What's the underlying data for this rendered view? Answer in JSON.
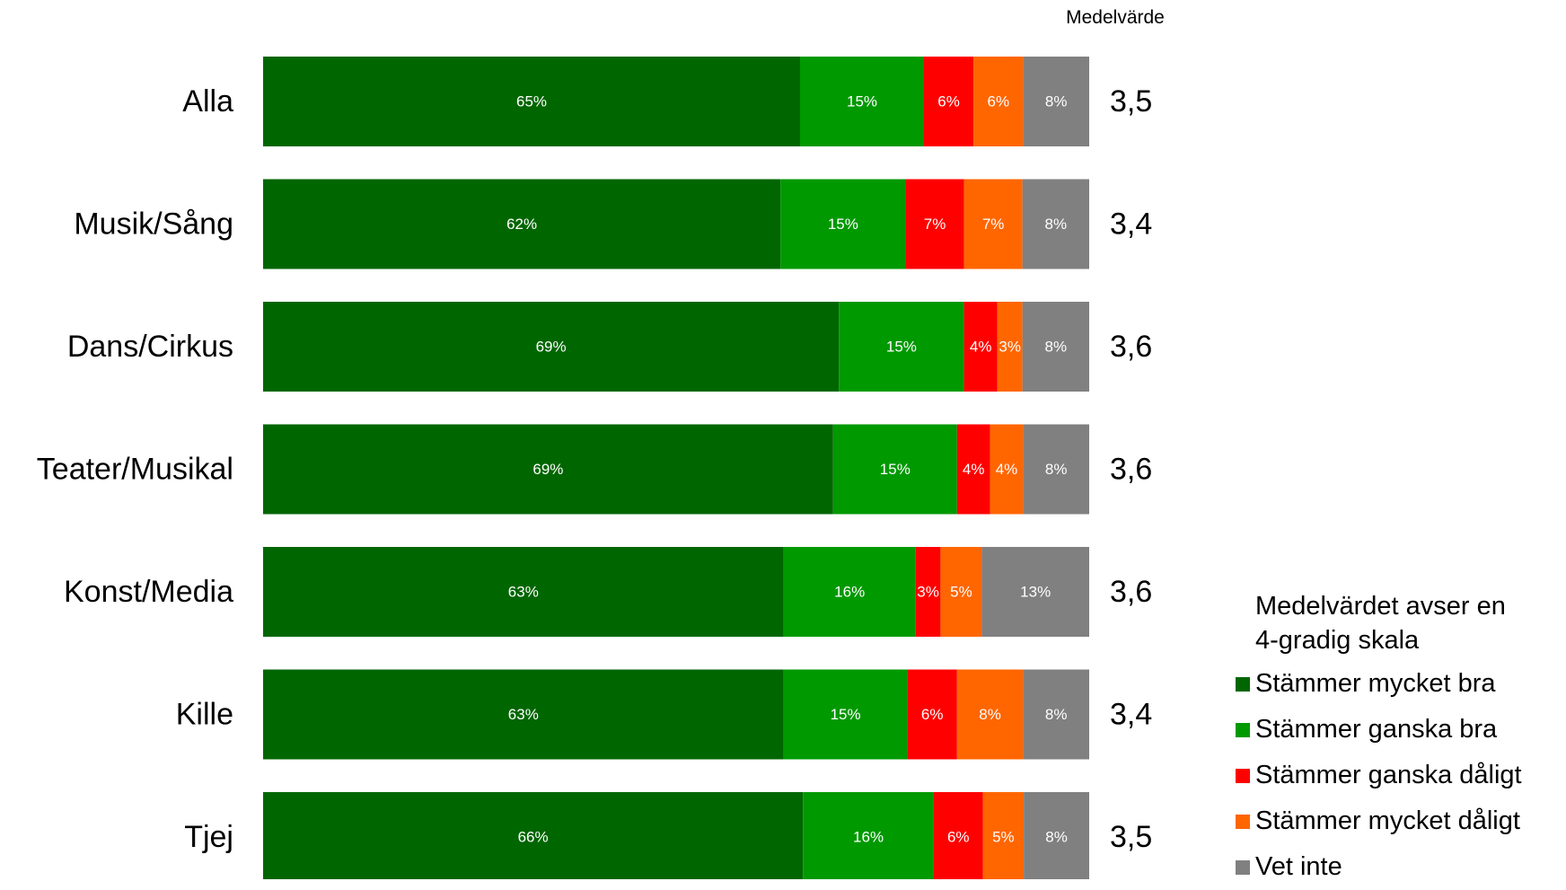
{
  "chart_data": {
    "type": "bar",
    "orientation": "horizontal",
    "stacked": true,
    "categories": [
      "Alla",
      "Musik/Sång",
      "Dans/Cirkus",
      "Teater/Musikal",
      "Konst/Media",
      "Kille",
      "Tjej"
    ],
    "series": [
      {
        "name": "Stämmer mycket bra",
        "color": "#006600",
        "values": [
          65,
          62,
          69,
          69,
          63,
          63,
          66
        ]
      },
      {
        "name": "Stämmer ganska bra",
        "color": "#009900",
        "values": [
          15,
          15,
          15,
          15,
          16,
          15,
          16
        ]
      },
      {
        "name": "Stämmer ganska dåligt",
        "color": "#ff0000",
        "values": [
          6,
          7,
          4,
          4,
          3,
          6,
          6
        ]
      },
      {
        "name": "Stämmer mycket dåligt",
        "color": "#ff6600",
        "values": [
          6,
          7,
          3,
          4,
          5,
          8,
          5
        ]
      },
      {
        "name": "Vet inte",
        "color": "#808080",
        "values": [
          8,
          8,
          8,
          8,
          13,
          8,
          8
        ]
      }
    ],
    "data_label_suffix": "%",
    "mean_header": "Medelvärde",
    "mean_values": [
      "3,5",
      "3,4",
      "3,6",
      "3,6",
      "3,6",
      "3,4",
      "3,5"
    ],
    "grid": false,
    "legend_position": "bottom-right",
    "legend_note": "Medelvärdet avser en\n4-gradig skala"
  }
}
